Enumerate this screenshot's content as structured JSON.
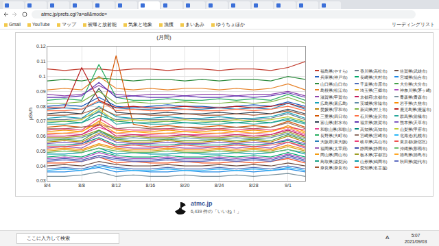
{
  "browser": {
    "url": "atmc.jp/prefs.cgi?a=all&mode=",
    "bookmarks": [
      "Gmail",
      "YouTube",
      "マップ",
      "被曝と放射能",
      "気象と地象",
      "漁獲",
      "まいあみ",
      "ゆうちょほか"
    ],
    "reading_list": "リーディングリスト"
  },
  "chart_data": {
    "type": "line",
    "title": "(月間)",
    "y_label": "μSv/h",
    "categories": [
      "8/4",
      null,
      "8/8",
      null,
      "8/12",
      null,
      "8/16",
      null,
      "8/20",
      null,
      "8/24",
      null,
      "8/28",
      null,
      "9/1",
      null
    ],
    "ylim": [
      0.03,
      0.12
    ],
    "yticks": [
      0.03,
      0.04,
      0.05,
      0.06,
      0.07,
      0.08,
      0.09,
      0.1,
      0.11,
      0.12
    ],
    "grid": true,
    "legend": "right",
    "series": [
      {
        "name": "福島県(やすら)",
        "color": "#c0392b",
        "values": [
          0.105,
          0.104,
          0.105,
          0.105,
          0.104,
          0.105,
          0.105,
          0.104,
          0.105,
          0.105,
          0.104,
          0.105,
          0.105,
          0.104,
          0.106,
          0.11
        ]
      },
      {
        "name": "兵庫県(神戸市)",
        "color": "#1f5fbf",
        "values": [
          0.08,
          0.081,
          0.08,
          0.086,
          0.08,
          0.079,
          0.08,
          0.081,
          0.08,
          0.08,
          0.079,
          0.08,
          0.081,
          0.08,
          0.083,
          0.08
        ]
      },
      {
        "name": "山口県(山口市)",
        "color": "#2e8b3e",
        "values": [
          0.097,
          0.098,
          0.097,
          0.099,
          0.098,
          0.097,
          0.098,
          0.098,
          0.097,
          0.098,
          0.097,
          0.098,
          0.098,
          0.097,
          0.1,
          0.098
        ]
      },
      {
        "name": "島根県(松江市)",
        "color": "#e67e22",
        "values": [
          0.091,
          0.092,
          0.091,
          0.1,
          0.092,
          0.091,
          0.092,
          0.091,
          0.092,
          0.092,
          0.091,
          0.092,
          0.091,
          0.092,
          0.095,
          0.091
        ]
      },
      {
        "name": "滋賀県(甲賀市)",
        "color": "#8e44ad",
        "values": [
          0.088,
          0.087,
          0.088,
          0.094,
          0.088,
          0.087,
          0.088,
          0.088,
          0.087,
          0.088,
          0.088,
          0.087,
          0.088,
          0.088,
          0.09,
          0.087
        ]
      },
      {
        "name": "広島県(東広島)",
        "color": "#17a2b8",
        "values": [
          0.072,
          0.073,
          0.072,
          0.08,
          0.073,
          0.072,
          0.072,
          0.073,
          0.072,
          0.072,
          0.073,
          0.072,
          0.072,
          0.073,
          0.076,
          0.072
        ]
      },
      {
        "name": "愛媛県(宇和市)",
        "color": "#b8860b",
        "values": [
          0.056,
          0.057,
          0.056,
          0.062,
          0.057,
          0.056,
          0.056,
          0.057,
          0.056,
          0.056,
          0.057,
          0.056,
          0.057,
          0.056,
          0.06,
          0.056
        ]
      },
      {
        "name": "三重県(四日市)",
        "color": "#d35400",
        "values": [
          0.066,
          0.067,
          0.066,
          0.067,
          0.114,
          0.068,
          0.066,
          0.067,
          0.066,
          0.066,
          0.067,
          0.066,
          0.067,
          0.066,
          0.07,
          0.066
        ]
      },
      {
        "name": "富山県(射水市)",
        "color": "#2c3e50",
        "values": [
          0.075,
          0.076,
          0.075,
          0.092,
          0.076,
          0.075,
          0.075,
          0.076,
          0.075,
          0.075,
          0.076,
          0.075,
          0.076,
          0.075,
          0.078,
          0.075
        ]
      },
      {
        "name": "和歌山県(和歌山)",
        "color": "#e84393",
        "values": [
          0.061,
          0.062,
          0.061,
          0.066,
          0.062,
          0.061,
          0.061,
          0.062,
          0.061,
          0.061,
          0.062,
          0.061,
          0.062,
          0.061,
          0.065,
          0.061
        ]
      },
      {
        "name": "長野県(大町市)",
        "color": "#27ae60",
        "values": [
          0.084,
          0.085,
          0.084,
          0.108,
          0.086,
          0.084,
          0.084,
          0.085,
          0.084,
          0.084,
          0.085,
          0.084,
          0.085,
          0.084,
          0.088,
          0.084
        ]
      },
      {
        "name": "大阪府(東大阪)",
        "color": "#2980b9",
        "values": [
          0.078,
          0.079,
          0.078,
          0.083,
          0.079,
          0.078,
          0.078,
          0.079,
          0.078,
          0.078,
          0.079,
          0.078,
          0.079,
          0.078,
          0.082,
          0.078
        ]
      },
      {
        "name": "福岡県(太宰府)",
        "color": "#9b59b6",
        "values": [
          0.052,
          0.053,
          0.052,
          0.058,
          0.053,
          0.052,
          0.052,
          0.053,
          0.052,
          0.052,
          0.053,
          0.052,
          0.053,
          0.052,
          0.056,
          0.052
        ]
      },
      {
        "name": "岡山県(岡山市)",
        "color": "#f39c12",
        "values": [
          0.063,
          0.064,
          0.063,
          0.07,
          0.064,
          0.063,
          0.063,
          0.064,
          0.063,
          0.063,
          0.064,
          0.063,
          0.064,
          0.063,
          0.067,
          0.063
        ]
      },
      {
        "name": "鳥取県(湯梨浜)",
        "color": "#16a085",
        "values": [
          0.069,
          0.07,
          0.069,
          0.074,
          0.07,
          0.069,
          0.069,
          0.07,
          0.069,
          0.069,
          0.07,
          0.069,
          0.07,
          0.069,
          0.072,
          0.069
        ]
      },
      {
        "name": "奈良県(奈良市)",
        "color": "#a0522d",
        "values": [
          0.074,
          0.074,
          0.075,
          0.079,
          0.074,
          0.075,
          0.074,
          0.074,
          0.075,
          0.074,
          0.074,
          0.075,
          0.074,
          0.075,
          0.077,
          0.074
        ]
      },
      {
        "name": "香川県(高松市)",
        "color": "#6c7a89",
        "values": [
          0.071,
          0.071,
          0.072,
          0.076,
          0.071,
          0.072,
          0.071,
          0.071,
          0.072,
          0.071,
          0.071,
          0.072,
          0.071,
          0.072,
          0.075,
          0.071
        ]
      },
      {
        "name": "長崎県(大村市)",
        "color": "#00a86b",
        "values": [
          0.046,
          0.047,
          0.046,
          0.05,
          0.047,
          0.046,
          0.046,
          0.047,
          0.046,
          0.046,
          0.047,
          0.046,
          0.047,
          0.046,
          0.049,
          0.046
        ]
      },
      {
        "name": "千葉県(市原市)",
        "color": "#4b6cb7",
        "values": [
          0.038,
          0.039,
          0.038,
          0.041,
          0.039,
          0.038,
          0.038,
          0.039,
          0.038,
          0.038,
          0.039,
          0.038,
          0.039,
          0.038,
          0.04,
          0.038
        ]
      },
      {
        "name": "埼玉県(三郷市)",
        "color": "#d4a017",
        "values": [
          0.05,
          0.051,
          0.05,
          0.054,
          0.051,
          0.05,
          0.05,
          0.051,
          0.05,
          0.05,
          0.051,
          0.05,
          0.051,
          0.05,
          0.053,
          0.05
        ]
      },
      {
        "name": "京都府(京都市)",
        "color": "#c2185b",
        "values": [
          0.06,
          0.06,
          0.061,
          0.068,
          0.06,
          0.061,
          0.06,
          0.06,
          0.061,
          0.06,
          0.06,
          0.061,
          0.06,
          0.061,
          0.064,
          0.06
        ]
      },
      {
        "name": "茨城県(常陸市)",
        "color": "#5d8aa8",
        "values": [
          0.058,
          0.058,
          0.059,
          0.063,
          0.058,
          0.059,
          0.058,
          0.058,
          0.059,
          0.058,
          0.058,
          0.059,
          0.058,
          0.059,
          0.062,
          0.058
        ]
      },
      {
        "name": "新潟県(村上市)",
        "color": "#7cb342",
        "values": [
          0.082,
          0.082,
          0.083,
          0.09,
          0.082,
          0.083,
          0.082,
          0.082,
          0.083,
          0.082,
          0.082,
          0.083,
          0.082,
          0.083,
          0.086,
          0.082
        ]
      },
      {
        "name": "石川県(金沢市)",
        "color": "#ff7043",
        "values": [
          0.077,
          0.077,
          0.078,
          0.084,
          0.077,
          0.078,
          0.077,
          0.077,
          0.078,
          0.077,
          0.077,
          0.078,
          0.077,
          0.078,
          0.08,
          0.077
        ]
      },
      {
        "name": "福井県(敦賀市)",
        "color": "#5e35b1",
        "values": [
          0.086,
          0.086,
          0.087,
          0.096,
          0.086,
          0.087,
          0.086,
          0.086,
          0.087,
          0.086,
          0.086,
          0.087,
          0.086,
          0.087,
          0.089,
          0.086
        ]
      },
      {
        "name": "高知県(高知市)",
        "color": "#00897b",
        "values": [
          0.054,
          0.054,
          0.055,
          0.059,
          0.054,
          0.055,
          0.054,
          0.054,
          0.055,
          0.054,
          0.054,
          0.055,
          0.054,
          0.055,
          0.057,
          0.054
        ]
      },
      {
        "name": "宮崎県(宮崎市)",
        "color": "#8d6e63",
        "values": [
          0.065,
          0.065,
          0.066,
          0.068,
          0.065,
          0.066,
          0.065,
          0.065,
          0.066,
          0.065,
          0.065,
          0.066,
          0.065,
          0.066,
          0.069,
          0.065
        ]
      },
      {
        "name": "岐阜県(高山市)",
        "color": "#ec407a",
        "values": [
          0.064,
          0.065,
          0.064,
          0.072,
          0.065,
          0.064,
          0.064,
          0.065,
          0.064,
          0.064,
          0.065,
          0.064,
          0.065,
          0.064,
          0.066,
          0.064
        ]
      },
      {
        "name": "静岡県(静岡市)",
        "color": "#3949ab",
        "values": [
          0.044,
          0.045,
          0.044,
          0.047,
          0.045,
          0.044,
          0.044,
          0.045,
          0.044,
          0.044,
          0.045,
          0.044,
          0.045,
          0.044,
          0.047,
          0.044
        ]
      },
      {
        "name": "栃木県(宇都宮)",
        "color": "#9e9d24",
        "values": [
          0.059,
          0.059,
          0.06,
          0.064,
          0.059,
          0.06,
          0.059,
          0.059,
          0.06,
          0.059,
          0.059,
          0.06,
          0.059,
          0.06,
          0.063,
          0.059
        ]
      },
      {
        "name": "山形県(鶴岡市)",
        "color": "#0097a7",
        "values": [
          0.048,
          0.048,
          0.049,
          0.052,
          0.048,
          0.049,
          0.048,
          0.048,
          0.049,
          0.048,
          0.048,
          0.049,
          0.048,
          0.049,
          0.051,
          0.048
        ]
      },
      {
        "name": "愛知県(名古屋)",
        "color": "#f4511e",
        "values": [
          0.042,
          0.042,
          0.043,
          0.046,
          0.042,
          0.043,
          0.042,
          0.042,
          0.043,
          0.042,
          0.042,
          0.043,
          0.042,
          0.043,
          0.045,
          0.042
        ]
      },
      {
        "name": "佐賀県(武雄市)",
        "color": "#6d4c41",
        "values": [
          0.04,
          0.041,
          0.04,
          0.043,
          0.041,
          0.04,
          0.04,
          0.041,
          0.04,
          0.04,
          0.041,
          0.04,
          0.041,
          0.04,
          0.042,
          0.04
        ]
      },
      {
        "name": "宮城県(仙台市)",
        "color": "#1e88e5",
        "values": [
          0.036,
          0.036,
          0.037,
          0.039,
          0.036,
          0.037,
          0.036,
          0.036,
          0.037,
          0.036,
          0.036,
          0.037,
          0.036,
          0.037,
          0.038,
          0.036
        ]
      },
      {
        "name": "大分県(大分市)",
        "color": "#43a047",
        "values": [
          0.057,
          0.058,
          0.057,
          0.064,
          0.058,
          0.057,
          0.057,
          0.058,
          0.057,
          0.057,
          0.058,
          0.057,
          0.058,
          0.057,
          0.061,
          0.057
        ]
      },
      {
        "name": "神奈川県(茅ヶ崎)",
        "color": "#ab47bc",
        "values": [
          0.045,
          0.046,
          0.045,
          0.049,
          0.046,
          0.045,
          0.045,
          0.046,
          0.045,
          0.045,
          0.046,
          0.045,
          0.046,
          0.045,
          0.048,
          0.045
        ]
      },
      {
        "name": "青森県(青森市)",
        "color": "#78909c",
        "values": [
          0.033,
          0.033,
          0.034,
          0.036,
          0.033,
          0.034,
          0.033,
          0.033,
          0.034,
          0.033,
          0.033,
          0.034,
          0.033,
          0.034,
          0.035,
          0.033
        ]
      },
      {
        "name": "岩手県(久慈市)",
        "color": "#fb8c00",
        "values": [
          0.051,
          0.052,
          0.051,
          0.055,
          0.052,
          0.051,
          0.051,
          0.052,
          0.051,
          0.051,
          0.052,
          0.051,
          0.052,
          0.051,
          0.054,
          0.051
        ]
      },
      {
        "name": "鹿児島県(鹿屋市)",
        "color": "#b71c1c",
        "values": [
          0.079,
          0.079,
          0.106,
          0.084,
          0.079,
          0.08,
          0.079,
          0.079,
          0.08,
          0.079,
          0.079,
          0.08,
          0.079,
          0.08,
          0.082,
          0.079
        ]
      },
      {
        "name": "群馬県(前橋市)",
        "color": "#26a69a",
        "values": [
          0.068,
          0.068,
          0.069,
          0.077,
          0.068,
          0.069,
          0.068,
          0.068,
          0.069,
          0.068,
          0.068,
          0.069,
          0.068,
          0.069,
          0.071,
          0.068
        ]
      },
      {
        "name": "熊本県(天草市)",
        "color": "#7e57c2",
        "values": [
          0.055,
          0.056,
          0.055,
          0.061,
          0.056,
          0.055,
          0.055,
          0.056,
          0.055,
          0.055,
          0.056,
          0.055,
          0.056,
          0.055,
          0.058,
          0.055
        ]
      },
      {
        "name": "山梨県(甲府市)",
        "color": "#c0ca33",
        "values": [
          0.07,
          0.07,
          0.071,
          0.078,
          0.07,
          0.071,
          0.07,
          0.07,
          0.071,
          0.07,
          0.07,
          0.071,
          0.07,
          0.071,
          0.073,
          0.07
        ]
      },
      {
        "name": "北海道(札幌市)",
        "color": "#29b6f6",
        "values": [
          0.037,
          0.038,
          0.037,
          0.04,
          0.038,
          0.037,
          0.037,
          0.038,
          0.037,
          0.037,
          0.038,
          0.037,
          0.038,
          0.037,
          0.039,
          0.037
        ]
      },
      {
        "name": "東京都(新宿区)",
        "color": "#ef5350",
        "values": [
          0.053,
          0.053,
          0.054,
          0.058,
          0.053,
          0.054,
          0.053,
          0.053,
          0.054,
          0.053,
          0.053,
          0.054,
          0.053,
          0.054,
          0.056,
          0.053
        ]
      },
      {
        "name": "沖縄県(那覇市)",
        "color": "#66bb6a",
        "values": [
          0.049,
          0.05,
          0.049,
          0.052,
          0.05,
          0.049,
          0.049,
          0.05,
          0.049,
          0.049,
          0.05,
          0.049,
          0.05,
          0.049,
          0.051,
          0.049
        ]
      },
      {
        "name": "徳島県(徳島市)",
        "color": "#ffa726",
        "values": [
          0.062,
          0.062,
          0.063,
          0.069,
          0.062,
          0.063,
          0.062,
          0.062,
          0.063,
          0.062,
          0.062,
          0.063,
          0.062,
          0.063,
          0.066,
          0.062
        ]
      },
      {
        "name": "秋田県(能代市)",
        "color": "#5c6bc0",
        "values": [
          0.043,
          0.044,
          0.043,
          0.046,
          0.044,
          0.043,
          0.043,
          0.044,
          0.043,
          0.043,
          0.044,
          0.043,
          0.044,
          0.043,
          0.046,
          0.043
        ]
      }
    ]
  },
  "footer": {
    "site": "atmc.jp",
    "likes": "6,439 件の「いいね！」"
  },
  "taskbar": {
    "search": "ここに入力して検索",
    "ime": "A",
    "time": "5:07",
    "date": "2021/09/03"
  }
}
